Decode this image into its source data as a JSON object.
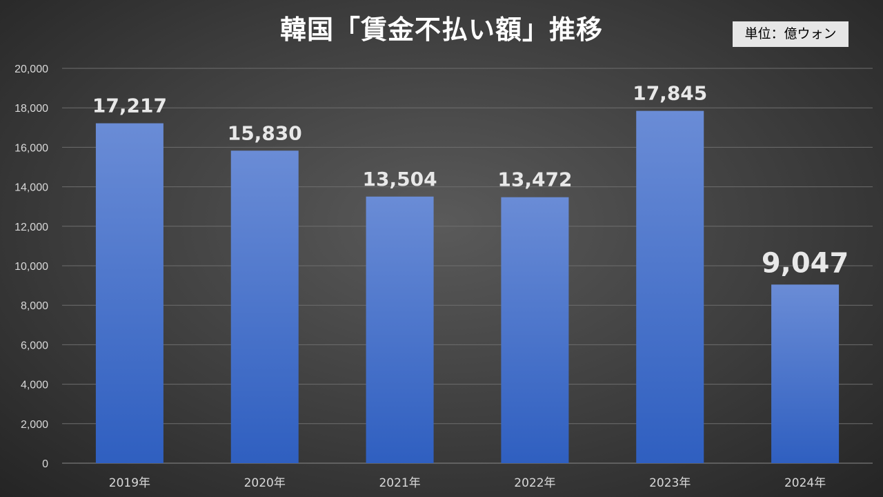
{
  "chart_data": {
    "type": "bar",
    "title": "韓国「賃金不払い額」推移",
    "unit_label": "単位：億ウォン",
    "categories": [
      "2019年",
      "2020年",
      "2021年",
      "2022年",
      "2023年",
      "2024年"
    ],
    "values": [
      17217,
      15830,
      13504,
      13472,
      17845,
      9047
    ],
    "value_labels": [
      "17,217",
      "15,830",
      "13,504",
      "13,472",
      "17,845",
      "9,047"
    ],
    "yticks": [
      "0",
      "2,000",
      "4,000",
      "6,000",
      "8,000",
      "10,000",
      "12,000",
      "14,000",
      "16,000",
      "18,000",
      "20,000"
    ],
    "ylim": [
      0,
      20000
    ],
    "grid": true,
    "highlight_index": 5,
    "colors": {
      "bar_top": "#6a8cd6",
      "bar_bottom": "#2f5fc0",
      "label": "#e8e8e8",
      "highlight_label": "#ff0000",
      "grid": "#6e6e6e",
      "axis_text": "#d9d9d9"
    }
  }
}
